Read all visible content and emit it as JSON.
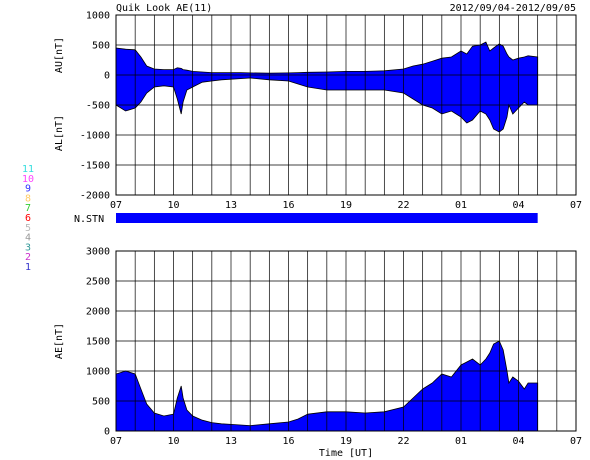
{
  "header": {
    "title": "Quik Look AE(11)",
    "date_range": "2012/09/04-2012/09/05"
  },
  "station_legend": {
    "items": [
      {
        "label": "11",
        "color": "#33dddd"
      },
      {
        "label": "10",
        "color": "#ff44ff"
      },
      {
        "label": "9",
        "color": "#3333ff"
      },
      {
        "label": "8",
        "color": "#ffcc66"
      },
      {
        "label": "7",
        "color": "#33cc33"
      },
      {
        "label": "6",
        "color": "#ff0000"
      },
      {
        "label": "5",
        "color": "#bbbbbb"
      },
      {
        "label": "4",
        "color": "#999999"
      },
      {
        "label": "3",
        "color": "#339999"
      },
      {
        "label": "2",
        "color": "#cc33cc"
      },
      {
        "label": "1",
        "color": "#3333cc"
      }
    ]
  },
  "chart_data": [
    {
      "type": "area",
      "name": "AU/AL",
      "ylabel_upper": "AU[nT]",
      "ylabel_lower": "AL[nT]",
      "ylim": [
        -2000,
        1000
      ],
      "yticks": [
        "1000",
        "500",
        "0",
        "-500",
        "-1000",
        "-1500",
        "-2000"
      ],
      "xticks": [
        "07",
        "10",
        "13",
        "16",
        "19",
        "22",
        "01",
        "04",
        "07"
      ],
      "grid": true,
      "color": "#0000ff",
      "x_hours": [
        7.0,
        7.5,
        8.0,
        8.3,
        8.6,
        9.0,
        9.5,
        10.0,
        10.2,
        10.4,
        10.5,
        10.7,
        11.0,
        11.5,
        12.0,
        12.5,
        13.0,
        13.5,
        14.0,
        15.0,
        16.0,
        16.5,
        17.0,
        18.0,
        19.0,
        20.0,
        21.0,
        22.0,
        22.5,
        23.0,
        23.5,
        24.0,
        24.5,
        25.0,
        25.3,
        25.6,
        26.0,
        26.3,
        26.5,
        26.7,
        27.0,
        27.2,
        27.4,
        27.5,
        27.7,
        28.0,
        28.3,
        28.5,
        29.0
      ],
      "au": [
        450,
        430,
        420,
        300,
        150,
        100,
        90,
        90,
        120,
        110,
        90,
        80,
        60,
        50,
        40,
        40,
        40,
        40,
        35,
        30,
        35,
        40,
        45,
        50,
        60,
        60,
        70,
        100,
        150,
        180,
        230,
        280,
        300,
        400,
        350,
        480,
        500,
        550,
        400,
        450,
        520,
        480,
        350,
        300,
        250,
        280,
        300,
        320,
        300
      ],
      "al": [
        -500,
        -600,
        -550,
        -450,
        -300,
        -200,
        -180,
        -200,
        -400,
        -650,
        -450,
        -250,
        -200,
        -120,
        -100,
        -80,
        -70,
        -60,
        -50,
        -80,
        -100,
        -150,
        -200,
        -250,
        -250,
        -250,
        -250,
        -300,
        -400,
        -500,
        -550,
        -650,
        -600,
        -700,
        -800,
        -750,
        -600,
        -650,
        -750,
        -900,
        -950,
        -900,
        -700,
        -500,
        -650,
        -550,
        -450,
        -500,
        -500
      ]
    },
    {
      "type": "bar",
      "name": "N.STN",
      "label": "N.STN",
      "x_range_hours": [
        7,
        29
      ],
      "color": "#0000ff"
    },
    {
      "type": "area",
      "name": "AE",
      "ylabel": "AE[nT]",
      "xlabel": "Time [UT]",
      "ylim": [
        0,
        3000
      ],
      "yticks": [
        "3000",
        "2500",
        "2000",
        "1500",
        "1000",
        "500",
        "0"
      ],
      "xticks": [
        "07",
        "10",
        "13",
        "16",
        "19",
        "22",
        "01",
        "04",
        "07"
      ],
      "grid": true,
      "color": "#0000ff",
      "x_hours": [
        7.0,
        7.5,
        8.0,
        8.3,
        8.6,
        9.0,
        9.5,
        10.0,
        10.2,
        10.4,
        10.5,
        10.7,
        11.0,
        11.5,
        12.0,
        12.5,
        13.0,
        13.5,
        14.0,
        15.0,
        16.0,
        16.5,
        17.0,
        18.0,
        19.0,
        20.0,
        21.0,
        22.0,
        22.5,
        23.0,
        23.5,
        24.0,
        24.5,
        25.0,
        25.3,
        25.6,
        26.0,
        26.3,
        26.5,
        26.7,
        27.0,
        27.2,
        27.4,
        27.5,
        27.7,
        28.0,
        28.3,
        28.5,
        29.0
      ],
      "values": [
        950,
        1000,
        950,
        700,
        450,
        300,
        250,
        280,
        550,
        750,
        550,
        350,
        250,
        180,
        140,
        120,
        110,
        100,
        90,
        120,
        150,
        200,
        280,
        320,
        320,
        300,
        320,
        400,
        550,
        700,
        800,
        950,
        900,
        1100,
        1150,
        1200,
        1100,
        1200,
        1300,
        1450,
        1500,
        1350,
        1000,
        800,
        900,
        830,
        700,
        800,
        800
      ]
    }
  ]
}
